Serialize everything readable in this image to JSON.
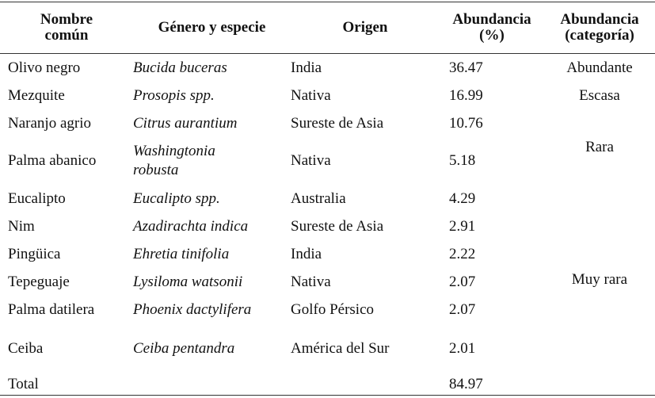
{
  "table": {
    "header": [
      "Nombre común",
      "Género y especie",
      "Origen",
      "Abundancia (%)",
      "Abundancia (categoría)"
    ],
    "rows": [
      [
        "Olivo negro",
        "Bucida buceras",
        "India",
        "36.47"
      ],
      [
        "Mezquite",
        "Prosopis spp.",
        "Nativa",
        "16.99"
      ],
      [
        "Naranjo agrio",
        "Citrus aurantium",
        "Sureste de Asia",
        "10.76"
      ],
      [
        "Palma abanico",
        "Washingtonia robusta",
        "Nativa",
        "5.18"
      ],
      [
        "Eucalipto",
        "Eucalipto spp.",
        "Australia",
        "4.29"
      ],
      [
        "Nim",
        "Azadirachta indica",
        "Sureste de Asia",
        "2.91"
      ],
      [
        "Pingüica",
        "Ehretia tinifolia",
        "India",
        "2.22"
      ],
      [
        "Tepeguaje",
        "Lysiloma watsonii",
        "Nativa",
        "2.07"
      ],
      [
        "Palma datilera",
        "Phoenix dactylifera",
        "Golfo Pérsico",
        "2.07"
      ],
      [
        "Ceiba",
        "Ceiba pentandra",
        "América del Sur",
        "2.01"
      ]
    ],
    "categories": [
      "Abundante",
      "Escasa",
      "Rara",
      "Muy rara"
    ],
    "total": [
      "Total",
      "84.97"
    ]
  }
}
